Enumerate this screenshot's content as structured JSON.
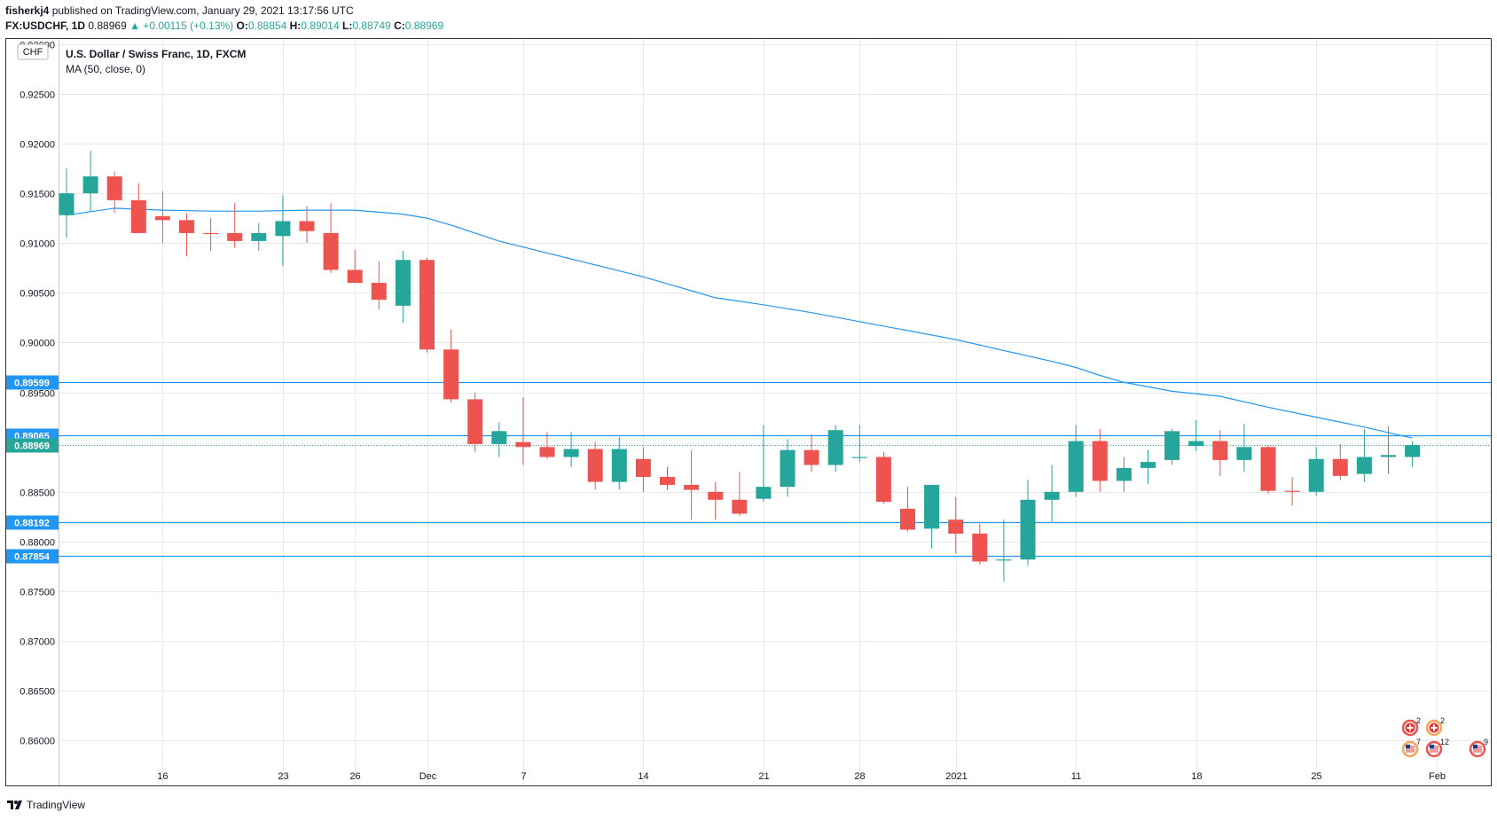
{
  "header": {
    "author": "fisherkj4",
    "published_text": "published on TradingView.com, January 29, 2021 13:17:56 UTC",
    "symbol": "FX:USDCHF, 1D",
    "last": "0.88969",
    "change": "▲ +0.00115 (+0.13%)",
    "o_label": "O:",
    "o": "0.88854",
    "h_label": "H:",
    "h": "0.89014",
    "l_label": "L:",
    "l": "0.88749",
    "c_label": "C:",
    "c": "0.88969"
  },
  "legend": {
    "title": "U.S. Dollar / Swiss Franc, 1D, FXCM",
    "indicator": "MA (50, close, 0)",
    "currency_badge": "CHF"
  },
  "colors": {
    "up": "#26a69a",
    "down": "#ef5350",
    "ma": "#2196f3",
    "level": "#2196f3",
    "grid": "#e8e8e8"
  },
  "footer": {
    "brand": "TradingView"
  },
  "events": [
    {
      "flag": "ch",
      "count": "2"
    },
    {
      "flag": "ch",
      "count": "2"
    },
    {
      "flag": "us",
      "count": "7"
    },
    {
      "flag": "us",
      "count": "12"
    },
    {
      "flag": "us",
      "count": "9"
    }
  ],
  "chart_data": {
    "type": "candlestick",
    "title": "U.S. Dollar / Swiss Franc, 1D, FXCM",
    "ylim": [
      0.8555,
      0.9305
    ],
    "y_ticks": [
      "0.93000",
      "0.92500",
      "0.92000",
      "0.91500",
      "0.91000",
      "0.90500",
      "0.90000",
      "0.89500",
      "0.88500",
      "0.88000",
      "0.87500",
      "0.87000",
      "0.86500",
      "0.86000"
    ],
    "x_ticks": [
      {
        "i": 4,
        "label": "16"
      },
      {
        "i": 9,
        "label": "23"
      },
      {
        "i": 12,
        "label": "26"
      },
      {
        "i": 15,
        "label": "Dec"
      },
      {
        "i": 19,
        "label": "7"
      },
      {
        "i": 24,
        "label": "14"
      },
      {
        "i": 29,
        "label": "21"
      },
      {
        "i": 33,
        "label": "28"
      },
      {
        "i": 37,
        "label": "2021"
      },
      {
        "i": 42,
        "label": "11"
      },
      {
        "i": 47,
        "label": "18"
      },
      {
        "i": 52,
        "label": "25"
      },
      {
        "i": 57,
        "label": "Feb"
      }
    ],
    "horizontal_levels": [
      {
        "value": 0.89599,
        "label": "0.89599"
      },
      {
        "value": 0.89065,
        "label": "0.89065"
      },
      {
        "value": 0.88192,
        "label": "0.88192"
      },
      {
        "value": 0.87854,
        "label": "0.87854"
      }
    ],
    "last_price": {
      "value": 0.88969,
      "label": "0.88969"
    },
    "candles": [
      {
        "o": 0.9128,
        "h": 0.9175,
        "l": 0.9105,
        "c": 0.915
      },
      {
        "o": 0.915,
        "h": 0.9193,
        "l": 0.9132,
        "c": 0.9167
      },
      {
        "o": 0.9167,
        "h": 0.9172,
        "l": 0.913,
        "c": 0.9143
      },
      {
        "o": 0.9143,
        "h": 0.916,
        "l": 0.911,
        "c": 0.911
      },
      {
        "o": 0.9127,
        "h": 0.9152,
        "l": 0.91,
        "c": 0.9123
      },
      {
        "o": 0.9123,
        "h": 0.913,
        "l": 0.9087,
        "c": 0.911
      },
      {
        "o": 0.911,
        "h": 0.9125,
        "l": 0.9092,
        "c": 0.9109
      },
      {
        "o": 0.911,
        "h": 0.914,
        "l": 0.9095,
        "c": 0.9102
      },
      {
        "o": 0.9102,
        "h": 0.912,
        "l": 0.9092,
        "c": 0.911
      },
      {
        "o": 0.9107,
        "h": 0.9148,
        "l": 0.9077,
        "c": 0.9122
      },
      {
        "o": 0.9122,
        "h": 0.9137,
        "l": 0.91,
        "c": 0.9112
      },
      {
        "o": 0.911,
        "h": 0.914,
        "l": 0.907,
        "c": 0.9073
      },
      {
        "o": 0.9073,
        "h": 0.9093,
        "l": 0.906,
        "c": 0.906
      },
      {
        "o": 0.906,
        "h": 0.9082,
        "l": 0.9033,
        "c": 0.9043
      },
      {
        "o": 0.9037,
        "h": 0.9092,
        "l": 0.902,
        "c": 0.9083
      },
      {
        "o": 0.9083,
        "h": 0.9085,
        "l": 0.899,
        "c": 0.8993
      },
      {
        "o": 0.8993,
        "h": 0.9013,
        "l": 0.894,
        "c": 0.8943
      },
      {
        "o": 0.8943,
        "h": 0.895,
        "l": 0.889,
        "c": 0.8898
      },
      {
        "o": 0.8898,
        "h": 0.892,
        "l": 0.8885,
        "c": 0.8911
      },
      {
        "o": 0.89,
        "h": 0.8945,
        "l": 0.8877,
        "c": 0.8895
      },
      {
        "o": 0.8895,
        "h": 0.891,
        "l": 0.8883,
        "c": 0.8885
      },
      {
        "o": 0.8885,
        "h": 0.891,
        "l": 0.8875,
        "c": 0.8893
      },
      {
        "o": 0.8893,
        "h": 0.89,
        "l": 0.8852,
        "c": 0.886
      },
      {
        "o": 0.886,
        "h": 0.8905,
        "l": 0.8852,
        "c": 0.8893
      },
      {
        "o": 0.8883,
        "h": 0.8895,
        "l": 0.885,
        "c": 0.8865
      },
      {
        "o": 0.8865,
        "h": 0.8875,
        "l": 0.8852,
        "c": 0.8857
      },
      {
        "o": 0.8857,
        "h": 0.8892,
        "l": 0.8822,
        "c": 0.8852
      },
      {
        "o": 0.885,
        "h": 0.886,
        "l": 0.8822,
        "c": 0.8842
      },
      {
        "o": 0.8842,
        "h": 0.887,
        "l": 0.8826,
        "c": 0.8828
      },
      {
        "o": 0.8843,
        "h": 0.8917,
        "l": 0.884,
        "c": 0.8855
      },
      {
        "o": 0.8855,
        "h": 0.8903,
        "l": 0.8845,
        "c": 0.8892
      },
      {
        "o": 0.8892,
        "h": 0.8908,
        "l": 0.887,
        "c": 0.8877
      },
      {
        "o": 0.8877,
        "h": 0.8917,
        "l": 0.887,
        "c": 0.8912
      },
      {
        "o": 0.8885,
        "h": 0.8917,
        "l": 0.888,
        "c": 0.8885
      },
      {
        "o": 0.8885,
        "h": 0.889,
        "l": 0.8838,
        "c": 0.884
      },
      {
        "o": 0.8833,
        "h": 0.8855,
        "l": 0.881,
        "c": 0.8812
      },
      {
        "o": 0.8813,
        "h": 0.8857,
        "l": 0.8793,
        "c": 0.8857
      },
      {
        "o": 0.8822,
        "h": 0.8845,
        "l": 0.8788,
        "c": 0.8808
      },
      {
        "o": 0.8808,
        "h": 0.8818,
        "l": 0.8777,
        "c": 0.878
      },
      {
        "o": 0.8782,
        "h": 0.8822,
        "l": 0.876,
        "c": 0.8782
      },
      {
        "o": 0.8782,
        "h": 0.8862,
        "l": 0.8776,
        "c": 0.8842
      },
      {
        "o": 0.8842,
        "h": 0.8877,
        "l": 0.882,
        "c": 0.885
      },
      {
        "o": 0.885,
        "h": 0.8917,
        "l": 0.8845,
        "c": 0.8901
      },
      {
        "o": 0.8901,
        "h": 0.8913,
        "l": 0.885,
        "c": 0.8861
      },
      {
        "o": 0.8861,
        "h": 0.8885,
        "l": 0.885,
        "c": 0.8874
      },
      {
        "o": 0.8874,
        "h": 0.8892,
        "l": 0.8858,
        "c": 0.888
      },
      {
        "o": 0.8882,
        "h": 0.8913,
        "l": 0.8877,
        "c": 0.8911
      },
      {
        "o": 0.8896,
        "h": 0.8922,
        "l": 0.8891,
        "c": 0.8901
      },
      {
        "o": 0.8901,
        "h": 0.8912,
        "l": 0.8866,
        "c": 0.8882
      },
      {
        "o": 0.8882,
        "h": 0.8918,
        "l": 0.887,
        "c": 0.8895
      },
      {
        "o": 0.8895,
        "h": 0.8897,
        "l": 0.8848,
        "c": 0.8851
      },
      {
        "o": 0.8851,
        "h": 0.8865,
        "l": 0.8836,
        "c": 0.885
      },
      {
        "o": 0.885,
        "h": 0.8895,
        "l": 0.8846,
        "c": 0.8883
      },
      {
        "o": 0.8883,
        "h": 0.8898,
        "l": 0.8862,
        "c": 0.8866
      },
      {
        "o": 0.8868,
        "h": 0.8913,
        "l": 0.886,
        "c": 0.8885
      },
      {
        "o": 0.8885,
        "h": 0.8916,
        "l": 0.8868,
        "c": 0.8887
      },
      {
        "o": 0.8885,
        "h": 0.8901,
        "l": 0.8875,
        "c": 0.8897
      }
    ],
    "ma50": [
      [
        0,
        0.9128
      ],
      [
        2,
        0.9135
      ],
      [
        4,
        0.9133
      ],
      [
        6,
        0.9132
      ],
      [
        8,
        0.9132
      ],
      [
        10,
        0.9133
      ],
      [
        12,
        0.9133
      ],
      [
        14,
        0.9129
      ],
      [
        15,
        0.9125
      ],
      [
        16,
        0.9118
      ],
      [
        17,
        0.911
      ],
      [
        18,
        0.9102
      ],
      [
        20,
        0.909
      ],
      [
        22,
        0.9078
      ],
      [
        24,
        0.9066
      ],
      [
        26,
        0.9052
      ],
      [
        27,
        0.9045
      ],
      [
        29,
        0.9038
      ],
      [
        31,
        0.903
      ],
      [
        33,
        0.9021
      ],
      [
        35,
        0.9012
      ],
      [
        37,
        0.9003
      ],
      [
        39,
        0.8992
      ],
      [
        41,
        0.8981
      ],
      [
        42,
        0.8975
      ],
      [
        43,
        0.8967
      ],
      [
        44,
        0.896
      ],
      [
        46,
        0.8951
      ],
      [
        48,
        0.8946
      ],
      [
        50,
        0.8935
      ],
      [
        52,
        0.8925
      ],
      [
        54,
        0.8915
      ],
      [
        56,
        0.8904
      ]
    ]
  }
}
